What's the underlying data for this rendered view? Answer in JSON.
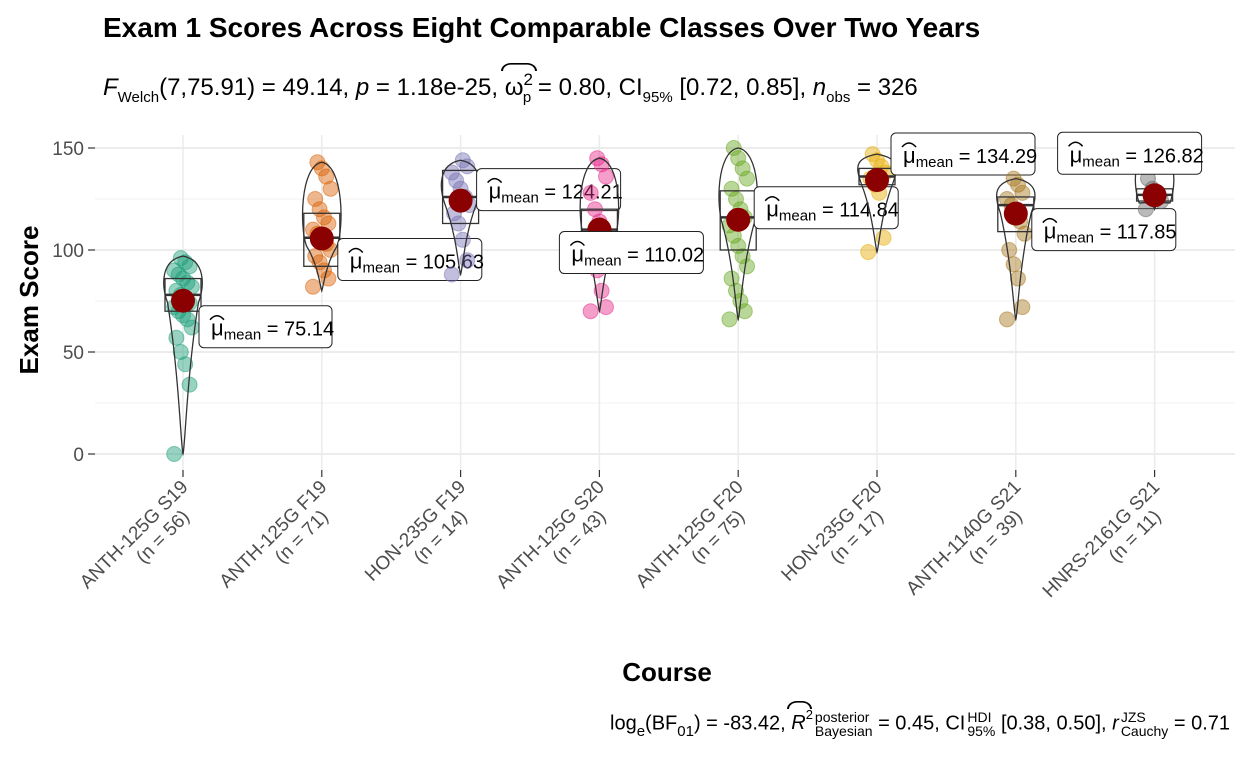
{
  "title": "Exam 1 Scores Across Eight Comparable Classes Over Two Years",
  "subtitle": {
    "f_label": "F",
    "f_sub": "Welch",
    "df": "(7,75.91) = 49.14, ",
    "p_label": "p",
    "p_value": " = 1.18e-25, ",
    "omega": "ω",
    "omega_sup": "2",
    "omega_sub": "p",
    "omega_value": " = 0.80, CI",
    "ci_sub": "95%",
    "ci_value": " [0.72, 0.85], ",
    "n_label": "n",
    "n_sub": "obs",
    "n_value": " = 326"
  },
  "caption": {
    "log": "log",
    "log_sub": "e",
    "bf": "(BF",
    "bf_sub": "01",
    "bf_value": ") = -83.42, ",
    "r_label": "R",
    "r_sup": "2",
    "r_top": "posterior",
    "r_bottom": "Bayesian",
    "r_value": " = 0.45, CI",
    "ci_top": "HDI",
    "ci_bottom": "95%",
    "ci_value": " [0.38, 0.50], ",
    "rc_label": "r",
    "rc_top": "JZS",
    "rc_bottom": "Cauchy",
    "rc_value": " = 0.71"
  },
  "chart_data": {
    "type": "violin-box-scatter",
    "xlabel": "Course",
    "ylabel": "Exam Score",
    "ylim": [
      -5,
      157
    ],
    "yticks": [
      0,
      50,
      100,
      150
    ],
    "grid": true,
    "categories": [
      {
        "course": "ANTH-125G S19",
        "n": "(n = 56)",
        "mean": 75.14,
        "mean_label": "75.14",
        "q1": 70,
        "median": 78,
        "q3": 86,
        "min": 0,
        "max": 97,
        "color": "#1b9e77",
        "points": [
          0,
          34,
          44,
          50,
          57,
          62,
          66,
          68,
          70,
          72,
          74,
          76,
          78,
          80,
          82,
          84,
          86,
          88,
          90,
          92,
          94,
          96
        ]
      },
      {
        "course": "ANTH-125G F19",
        "n": "(n = 71)",
        "mean": 105.63,
        "mean_label": "105.63",
        "q1": 92,
        "median": 106,
        "q3": 118,
        "min": 80,
        "max": 143,
        "color": "#d95f02",
        "points": [
          82,
          86,
          90,
          94,
          97,
          100,
          103,
          106,
          108,
          110,
          113,
          116,
          120,
          125,
          130,
          136,
          140,
          143
        ]
      },
      {
        "course": "HON-235G F19",
        "n": "(n = 14)",
        "mean": 124.21,
        "mean_label": "124.21",
        "q1": 113,
        "median": 126,
        "q3": 139,
        "min": 88,
        "max": 144,
        "color": "#7570b3",
        "points": [
          88,
          95,
          105,
          113,
          118,
          122,
          126,
          130,
          134,
          138,
          141,
          144
        ]
      },
      {
        "course": "ANTH-125G S20",
        "n": "(n = 43)",
        "mean": 110.02,
        "mean_label": "110.02",
        "q1": 100,
        "median": 110,
        "q3": 120,
        "min": 70,
        "max": 145,
        "color": "#e7298a",
        "points": [
          70,
          72,
          80,
          90,
          98,
          104,
          110,
          114,
          120,
          128,
          136,
          142,
          145
        ]
      },
      {
        "course": "ANTH-125G F20",
        "n": "(n = 75)",
        "mean": 114.84,
        "mean_label": "114.84",
        "q1": 100,
        "median": 116,
        "q3": 129,
        "min": 66,
        "max": 150,
        "color": "#66a61e",
        "points": [
          66,
          70,
          75,
          80,
          86,
          92,
          97,
          102,
          107,
          112,
          116,
          120,
          125,
          130,
          135,
          140,
          145,
          150
        ]
      },
      {
        "course": "HON-235G F20",
        "n": "(n = 17)",
        "mean": 134.29,
        "mean_label": "134.29",
        "q1": 132,
        "median": 136,
        "q3": 140,
        "min": 99,
        "max": 147,
        "color": "#e6ab02",
        "points": [
          99,
          106,
          128,
          132,
          135,
          138,
          141,
          144,
          147
        ]
      },
      {
        "course": "ANTH-1140G S21",
        "n": "(n = 39)",
        "mean": 117.85,
        "mean_label": "117.85",
        "q1": 109,
        "median": 122,
        "q3": 126,
        "min": 66,
        "max": 135,
        "color": "#a6761d",
        "points": [
          66,
          72,
          86,
          93,
          100,
          108,
          114,
          118,
          122,
          125,
          128,
          132,
          135
        ]
      },
      {
        "course": "HNRS-2161G S21",
        "n": "(n = 11)",
        "mean": 126.82,
        "mean_label": "126.82",
        "q1": 124,
        "median": 127,
        "q3": 130,
        "min": 120,
        "max": 151,
        "color": "#666666",
        "points": [
          120,
          124,
          127,
          130,
          135,
          151
        ]
      }
    ]
  }
}
